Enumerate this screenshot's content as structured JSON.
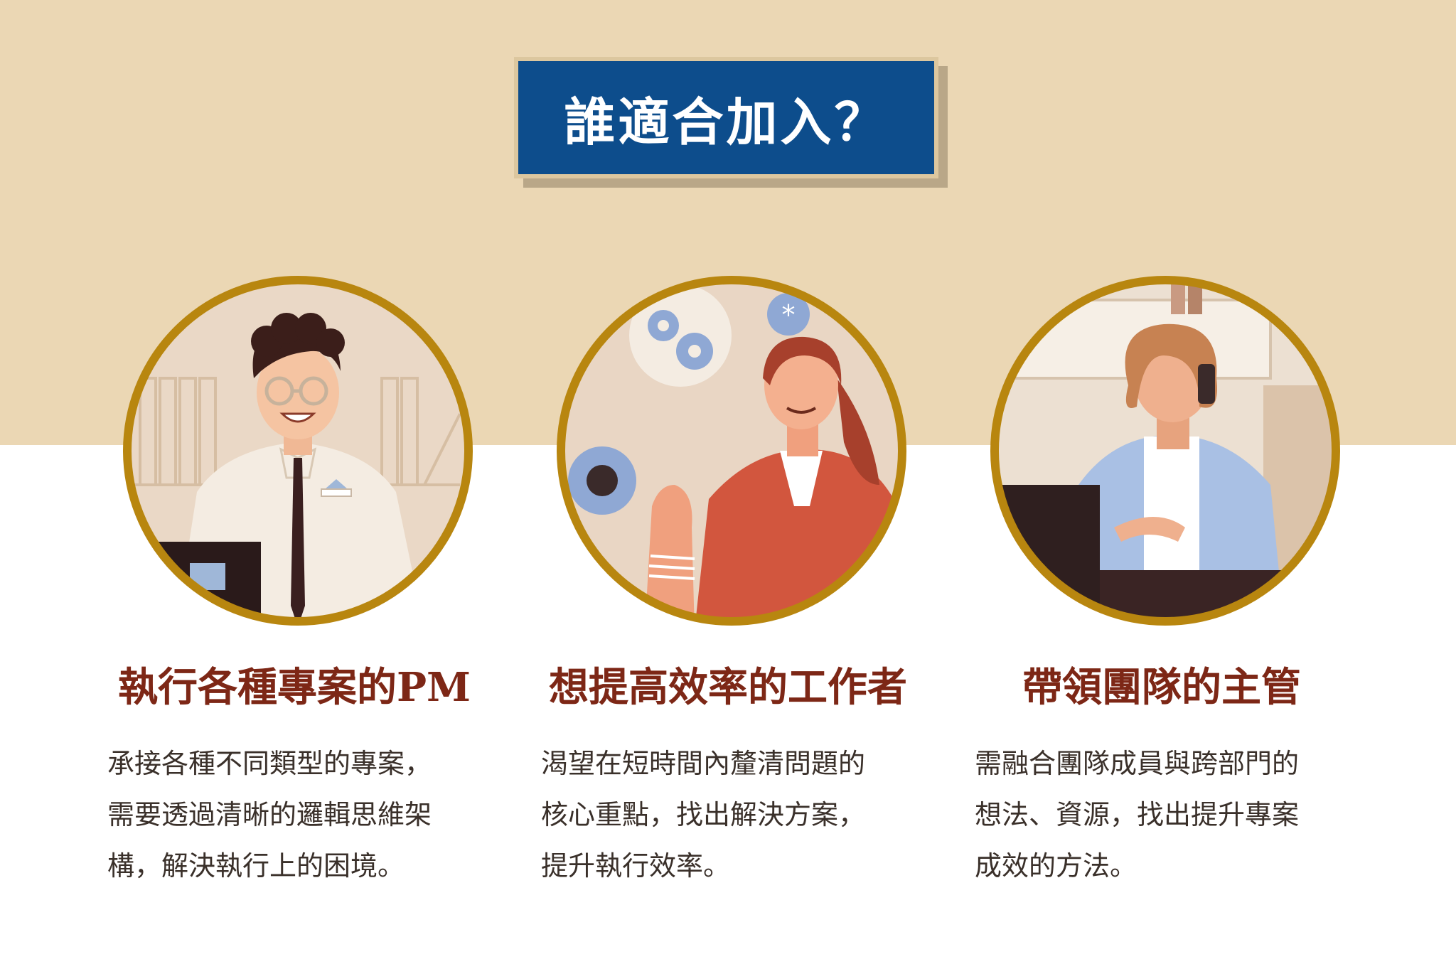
{
  "header": {
    "title": "誰適合加入？"
  },
  "cards": [
    {
      "title": "執行各種專案的PM",
      "lines": [
        "承接各種不同類型的專案，",
        "需要透過清晰的邏輯思維架",
        "構，解決執行上的困境。"
      ],
      "illustration_icon": "project-manager-illustration-icon"
    },
    {
      "title": "想提高效率的工作者",
      "lines": [
        "渴望在短時間內釐清問題的",
        "核心重點，找出解決方案，",
        "提升執行效率。"
      ],
      "illustration_icon": "efficient-worker-illustration-icon"
    },
    {
      "title": "帶領團隊的主管",
      "lines": [
        "需融合團隊成員與跨部門的",
        "想法、資源，找出提升專案",
        "成效的方法。"
      ],
      "illustration_icon": "team-leader-illustration-icon"
    }
  ],
  "colors": {
    "band": "#ebd7b4",
    "title_box": "#0d4d8c",
    "card_title": "#7d2716",
    "ring": "#b8860f",
    "body_text": "#3a302a"
  }
}
